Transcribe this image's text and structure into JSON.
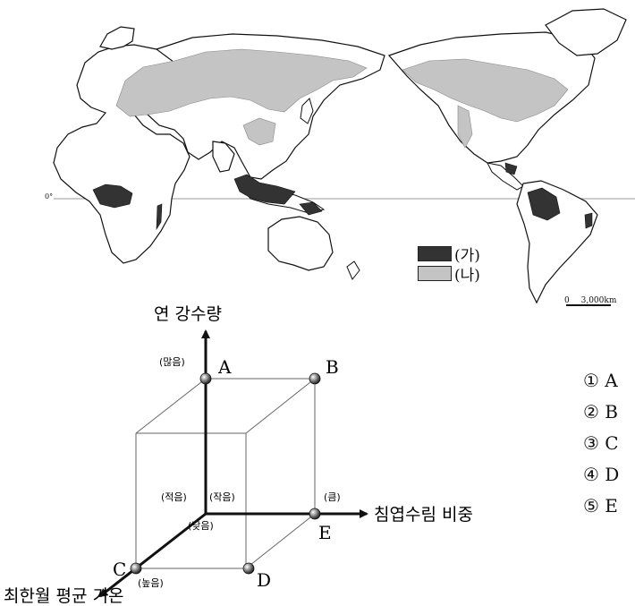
{
  "legend": {
    "a_label": "(가)",
    "b_label": "(나)",
    "a_color": "#333333",
    "b_color": "#c4c4c4"
  },
  "map": {
    "equator_label": "0°",
    "scale_zero": "0",
    "scale_value": "3,000km"
  },
  "diagram": {
    "axis_y_label": "연 강수량",
    "axis_x_label": "침엽수림 비중",
    "axis_z_label": "최한월 평균 기온",
    "y_high": "(많음)",
    "y_low": "(적음)",
    "x_low": "(작음)",
    "x_high": "(큼)",
    "z_low": "(낮음)",
    "z_high": "(높음)",
    "points": {
      "A": "A",
      "B": "B",
      "C": "C",
      "D": "D",
      "E": "E"
    }
  },
  "options": [
    {
      "number": "①",
      "text": "A"
    },
    {
      "number": "②",
      "text": "B"
    },
    {
      "number": "③",
      "text": "C"
    },
    {
      "number": "④",
      "text": "D"
    },
    {
      "number": "⑤",
      "text": "E"
    }
  ]
}
